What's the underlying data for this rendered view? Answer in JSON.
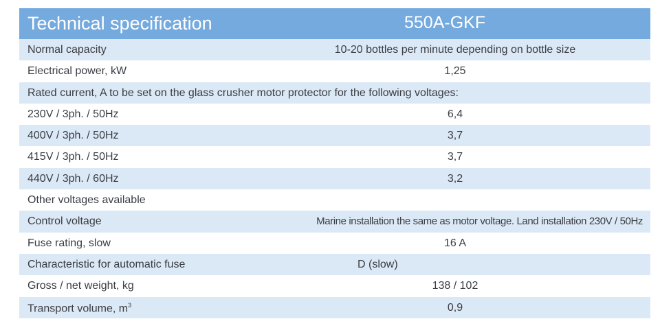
{
  "header": {
    "title": "Technical specification",
    "model": "550A-GKF"
  },
  "colors": {
    "header_bg": "#74aade",
    "row_alt_bg": "#dbe8f6",
    "text": "#3a3d42"
  },
  "rows": [
    {
      "label": "Normal capacity",
      "value": "10-20 bottles per minute depending on bottle size"
    },
    {
      "label": "Electrical power, kW",
      "value": "1,25"
    },
    {
      "label": "Rated current, A to be set on the glass crusher motor protector for the following voltages:",
      "value": ""
    },
    {
      "label": "230V /  3ph. /  50Hz",
      "value": "6,4"
    },
    {
      "label": "400V /  3ph. /  50Hz",
      "value": "3,7"
    },
    {
      "label": "415V /  3ph. /  50Hz",
      "value": "3,7"
    },
    {
      "label": "440V /  3ph. /  60Hz",
      "value": "3,2"
    },
    {
      "label": "Other voltages available",
      "value": ""
    },
    {
      "label": "Control voltage",
      "value": "Marine installation the same as motor voltage.  Land installation 230V / 50Hz"
    },
    {
      "label": "Fuse rating, slow",
      "value": "16 A"
    },
    {
      "label": "Characteristic for automatic fuse",
      "value": "D (slow)"
    },
    {
      "label": "Gross / net weight, kg",
      "value": "138 / 102"
    },
    {
      "label": "Transport volume, m",
      "label_sup": "3",
      "value": "0,9"
    }
  ]
}
